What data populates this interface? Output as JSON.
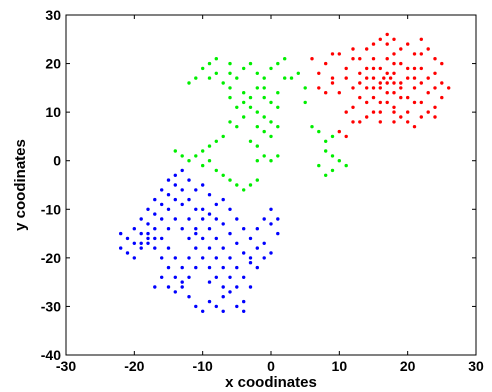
{
  "chart_data": {
    "type": "scatter",
    "xlabel": "x coodinates",
    "ylabel": "y coodinates",
    "xlim": [
      -30,
      30
    ],
    "ylim": [
      -40,
      30
    ],
    "xticks": [
      -30,
      -20,
      -10,
      0,
      10,
      20,
      30
    ],
    "yticks": [
      -40,
      -30,
      -20,
      -10,
      0,
      10,
      20,
      30
    ],
    "grid": false,
    "box": true,
    "series": [
      {
        "color": "#ff0000",
        "points": [
          [
            6,
            21
          ],
          [
            7,
            18
          ],
          [
            8,
            20
          ],
          [
            9,
            17
          ],
          [
            10,
            22
          ],
          [
            11,
            19
          ],
          [
            12,
            21
          ],
          [
            13,
            18
          ],
          [
            12,
            15
          ],
          [
            13,
            13
          ],
          [
            11,
            10
          ],
          [
            12,
            8
          ],
          [
            10,
            6
          ],
          [
            11,
            5
          ],
          [
            14,
            23
          ],
          [
            15,
            21
          ],
          [
            16,
            25
          ],
          [
            17,
            24
          ],
          [
            18,
            22
          ],
          [
            19,
            20
          ],
          [
            20,
            24
          ],
          [
            21,
            22
          ],
          [
            22,
            25
          ],
          [
            23,
            23
          ],
          [
            22,
            19
          ],
          [
            23,
            17
          ],
          [
            24,
            15
          ],
          [
            25,
            13
          ],
          [
            24,
            11
          ],
          [
            22,
            9
          ],
          [
            21,
            12
          ],
          [
            20,
            10
          ],
          [
            19,
            13
          ],
          [
            18,
            11
          ],
          [
            17,
            14
          ],
          [
            16,
            12
          ],
          [
            15,
            10
          ],
          [
            14,
            12
          ],
          [
            13,
            16
          ],
          [
            14,
            19
          ],
          [
            15,
            17
          ],
          [
            16,
            16
          ],
          [
            16.5,
            17
          ],
          [
            17,
            16
          ],
          [
            17.5,
            17
          ],
          [
            18,
            16
          ],
          [
            16,
            15
          ],
          [
            17,
            18
          ],
          [
            18,
            18
          ],
          [
            15,
            15
          ],
          [
            19,
            16
          ],
          [
            15,
            19
          ],
          [
            20,
            17
          ],
          [
            21,
            15
          ],
          [
            22,
            16
          ],
          [
            23,
            14
          ],
          [
            24,
            18
          ],
          [
            25,
            16
          ],
          [
            14,
            15
          ],
          [
            19,
            9
          ],
          [
            20,
            8
          ],
          [
            21,
            7
          ],
          [
            18,
            8
          ],
          [
            13,
            8
          ],
          [
            9,
            16
          ],
          [
            8,
            14
          ],
          [
            7,
            15
          ],
          [
            24,
            21
          ],
          [
            21,
            19
          ],
          [
            19,
            23
          ],
          [
            17,
            21
          ],
          [
            15,
            24
          ],
          [
            13,
            21
          ],
          [
            11,
            17
          ],
          [
            10,
            14
          ],
          [
            12,
            11
          ],
          [
            14,
            9
          ],
          [
            16,
            8
          ],
          [
            18,
            10
          ],
          [
            20,
            13
          ],
          [
            22,
            12
          ],
          [
            23,
            10
          ],
          [
            25,
            20
          ],
          [
            26,
            15
          ],
          [
            24,
            9
          ],
          [
            17,
            26
          ],
          [
            18,
            25
          ],
          [
            12,
            23
          ],
          [
            9,
            22
          ],
          [
            16,
            19
          ],
          [
            18,
            20
          ],
          [
            20,
            19
          ],
          [
            17,
            12
          ],
          [
            15,
            13
          ],
          [
            19,
            15
          ],
          [
            22,
            22
          ],
          [
            14,
            17
          ],
          [
            21,
            17
          ],
          [
            18,
            14
          ],
          [
            16,
            10
          ]
        ]
      },
      {
        "color": "#00ee00",
        "points": [
          [
            -10,
            19
          ],
          [
            -9,
            20
          ],
          [
            -8,
            18
          ],
          [
            -9,
            17
          ],
          [
            -7,
            16
          ],
          [
            -6,
            18
          ],
          [
            -5,
            17
          ],
          [
            -4,
            19
          ],
          [
            -3,
            20
          ],
          [
            -2,
            18
          ],
          [
            -1,
            17
          ],
          [
            0,
            19
          ],
          [
            1,
            20
          ],
          [
            2,
            21
          ],
          [
            3,
            17
          ],
          [
            4,
            18
          ],
          [
            5,
            15
          ],
          [
            5,
            12
          ],
          [
            -2,
            15
          ],
          [
            -1,
            13
          ],
          [
            0,
            12
          ],
          [
            1,
            11
          ],
          [
            -3,
            11
          ],
          [
            -2,
            10
          ],
          [
            -1,
            9
          ],
          [
            0,
            8
          ],
          [
            1,
            7
          ],
          [
            -2,
            7
          ],
          [
            -1,
            6
          ],
          [
            0,
            5
          ],
          [
            -3,
            4
          ],
          [
            -2,
            3
          ],
          [
            -1,
            1
          ],
          [
            0,
            0
          ],
          [
            -4,
            9
          ],
          [
            -5,
            7
          ],
          [
            -6,
            8
          ],
          [
            -7,
            5
          ],
          [
            -8,
            4
          ],
          [
            -9,
            3
          ],
          [
            -10,
            2
          ],
          [
            -11,
            1
          ],
          [
            -12,
            0
          ],
          [
            -13,
            1
          ],
          [
            -14,
            2
          ],
          [
            -10,
            -1
          ],
          [
            -9,
            0
          ],
          [
            -8,
            -2
          ],
          [
            -7,
            -3
          ],
          [
            -6,
            -4
          ],
          [
            -5,
            -5
          ],
          [
            -4,
            -6
          ],
          [
            -3,
            -5
          ],
          [
            -2,
            -4
          ],
          [
            -12,
            16
          ],
          [
            -11,
            17
          ],
          [
            -8,
            21
          ],
          [
            -6,
            15
          ],
          [
            -4,
            14
          ],
          [
            -3,
            13
          ],
          [
            -1,
            15
          ],
          [
            1,
            14
          ],
          [
            8,
            2
          ],
          [
            9,
            1
          ],
          [
            10,
            0
          ],
          [
            11,
            -1
          ],
          [
            9,
            -2
          ],
          [
            8,
            -3
          ],
          [
            7,
            -1
          ],
          [
            8,
            4
          ],
          [
            9,
            5
          ],
          [
            -6,
            13
          ],
          [
            -5,
            11
          ],
          [
            6,
            7
          ],
          [
            7,
            6
          ],
          [
            2,
            17
          ],
          [
            -2,
            0
          ],
          [
            1,
            1
          ],
          [
            -4,
            12
          ],
          [
            -6,
            20
          ]
        ]
      },
      {
        "color": "#0000ff",
        "points": [
          [
            -22,
            -18
          ],
          [
            -21,
            -16
          ],
          [
            -20,
            -14
          ],
          [
            -19,
            -12
          ],
          [
            -18,
            -10
          ],
          [
            -17,
            -8
          ],
          [
            -16,
            -6
          ],
          [
            -15,
            -4
          ],
          [
            -14,
            -3
          ],
          [
            -13,
            -2
          ],
          [
            -12,
            -4
          ],
          [
            -11,
            -6
          ],
          [
            -10,
            -5
          ],
          [
            -9,
            -7
          ],
          [
            -8,
            -9
          ],
          [
            -7,
            -8
          ],
          [
            -6,
            -10
          ],
          [
            -5,
            -12
          ],
          [
            -4,
            -14
          ],
          [
            -3,
            -16
          ],
          [
            -2,
            -18
          ],
          [
            -1,
            -17
          ],
          [
            0,
            -19
          ],
          [
            1,
            -15
          ],
          [
            -20,
            -20
          ],
          [
            -19,
            -18
          ],
          [
            -18,
            -16
          ],
          [
            -17,
            -14
          ],
          [
            -16,
            -12
          ],
          [
            -15,
            -10
          ],
          [
            -14,
            -8
          ],
          [
            -13,
            -6
          ],
          [
            -12,
            -8
          ],
          [
            -11,
            -10
          ],
          [
            -10,
            -12
          ],
          [
            -9,
            -14
          ],
          [
            -8,
            -16
          ],
          [
            -7,
            -18
          ],
          [
            -6,
            -20
          ],
          [
            -5,
            -22
          ],
          [
            -4,
            -24
          ],
          [
            -3,
            -26
          ],
          [
            -19,
            -15
          ],
          [
            -18,
            -15
          ],
          [
            -17,
            -16
          ],
          [
            -18,
            -17
          ],
          [
            -17,
            -18
          ],
          [
            -19,
            -17
          ],
          [
            -16,
            -20
          ],
          [
            -15,
            -22
          ],
          [
            -14,
            -24
          ],
          [
            -13,
            -26
          ],
          [
            -12,
            -28
          ],
          [
            -11,
            -30
          ],
          [
            -10,
            -31
          ],
          [
            -9,
            -29
          ],
          [
            -8,
            -30
          ],
          [
            -7,
            -28
          ],
          [
            -6,
            -27
          ],
          [
            -5,
            -30
          ],
          [
            -4,
            -29
          ],
          [
            -15,
            -18
          ],
          [
            -14,
            -20
          ],
          [
            -13,
            -22
          ],
          [
            -12,
            -20
          ],
          [
            -11,
            -18
          ],
          [
            -10,
            -16
          ],
          [
            -9,
            -18
          ],
          [
            -8,
            -20
          ],
          [
            -7,
            -22
          ],
          [
            -6,
            -24
          ],
          [
            -5,
            -26
          ],
          [
            -16,
            -24
          ],
          [
            -17,
            -26
          ],
          [
            -15,
            -26
          ],
          [
            -14,
            -27
          ],
          [
            -13,
            -25
          ],
          [
            -12,
            -24
          ],
          [
            -11,
            -22
          ],
          [
            -10,
            -20
          ],
          [
            -9,
            -22
          ],
          [
            -8,
            -24
          ],
          [
            -7,
            -26
          ],
          [
            -2,
            -14
          ],
          [
            -1,
            -12
          ],
          [
            0,
            -10
          ],
          [
            1,
            -12
          ],
          [
            -3,
            -20
          ],
          [
            -2,
            -22
          ],
          [
            -1,
            -20
          ],
          [
            -20,
            -17
          ],
          [
            -21,
            -19
          ],
          [
            -22,
            -15
          ],
          [
            -16,
            -16
          ],
          [
            -15,
            -14
          ],
          [
            -14,
            -12
          ],
          [
            -13,
            -14
          ],
          [
            -12,
            -12
          ],
          [
            -11,
            -14
          ],
          [
            -10,
            -10
          ],
          [
            -9,
            -11
          ],
          [
            -8,
            -12
          ],
          [
            -7,
            -13
          ],
          [
            -6,
            -15
          ],
          [
            -5,
            -17
          ],
          [
            -4,
            -19
          ],
          [
            -3,
            -21
          ],
          [
            -18,
            -13
          ],
          [
            -17,
            -11
          ],
          [
            -16,
            -9
          ],
          [
            -15,
            -7
          ],
          [
            -14,
            -5
          ],
          [
            -13,
            -9
          ],
          [
            -12,
            -16
          ],
          [
            -11,
            -15
          ],
          [
            -9,
            -25
          ],
          [
            -7,
            -31
          ],
          [
            -4,
            -31
          ],
          [
            0,
            -13
          ]
        ]
      }
    ]
  }
}
